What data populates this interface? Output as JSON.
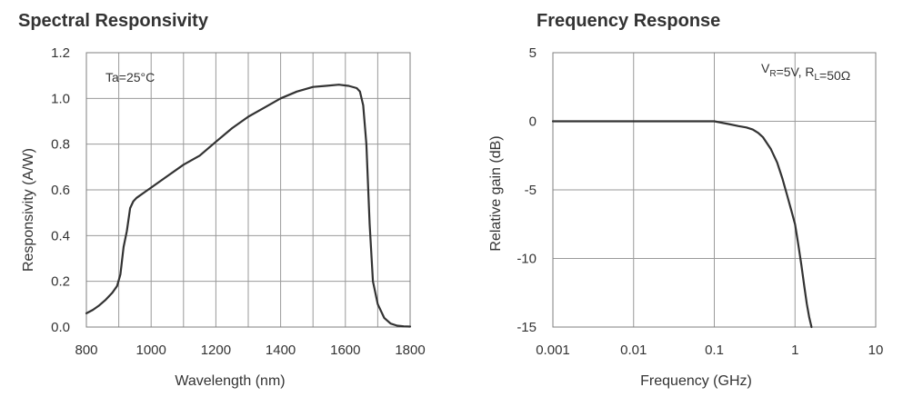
{
  "chart_data": [
    {
      "type": "line",
      "title": "Spectral Responsivity",
      "xlabel": "Wavelength  (nm)",
      "ylabel": "Responsivity  (A/W)",
      "xlim": [
        800,
        1800
      ],
      "ylim": [
        0,
        1.2
      ],
      "x_ticks": [
        800,
        1000,
        1200,
        1400,
        1600,
        1800
      ],
      "x_tick_labels": [
        "800",
        "1000",
        "1200",
        "1400",
        "1600",
        "1800"
      ],
      "y_ticks": [
        0,
        0.2,
        0.4,
        0.6,
        0.8,
        1.0,
        1.2
      ],
      "y_tick_labels": [
        "0.0",
        "0.2",
        "0.4",
        "0.6",
        "0.8",
        "1.0",
        "1.2"
      ],
      "x_minor_grid": [
        900,
        1100,
        1300,
        1500,
        1700
      ],
      "annotation": "Ta=25°C",
      "grid": true,
      "series": [
        {
          "name": "Responsivity",
          "x": [
            800,
            820,
            840,
            860,
            880,
            895,
            905,
            915,
            925,
            935,
            945,
            955,
            965,
            980,
            1000,
            1050,
            1100,
            1150,
            1200,
            1250,
            1300,
            1350,
            1400,
            1450,
            1500,
            1540,
            1580,
            1610,
            1635,
            1645,
            1655,
            1665,
            1675,
            1685,
            1700,
            1720,
            1740,
            1760,
            1780,
            1800
          ],
          "y": [
            0.06,
            0.075,
            0.095,
            0.12,
            0.15,
            0.18,
            0.23,
            0.35,
            0.42,
            0.52,
            0.55,
            0.565,
            0.575,
            0.59,
            0.61,
            0.66,
            0.71,
            0.75,
            0.81,
            0.87,
            0.92,
            0.96,
            1.0,
            1.03,
            1.05,
            1.055,
            1.06,
            1.055,
            1.045,
            1.03,
            0.97,
            0.8,
            0.45,
            0.2,
            0.1,
            0.04,
            0.015,
            0.006,
            0.003,
            0.002
          ]
        }
      ]
    },
    {
      "type": "line",
      "title": "Frequency Response",
      "xlabel": "Frequency  (GHz)",
      "ylabel": "Relative  gain  (dB)",
      "xscale": "log",
      "xlim": [
        0.001,
        10
      ],
      "ylim": [
        -15,
        5
      ],
      "x_ticks": [
        0.001,
        0.01,
        0.1,
        1,
        10
      ],
      "x_tick_labels": [
        "0.001",
        "0.01",
        "0.1",
        "1",
        "10"
      ],
      "y_ticks": [
        5,
        0,
        -5,
        -10,
        -15
      ],
      "y_tick_labels": [
        "5",
        "0",
        "-5",
        "-10",
        "-15"
      ],
      "annotation": {
        "v_main": "V",
        "v_sub": "R",
        "v_rest": "=5V, R",
        "r_sub": "L",
        "r_rest": "=50Ω"
      },
      "grid": true,
      "series": [
        {
          "name": "Relative gain",
          "x": [
            0.001,
            0.01,
            0.1,
            0.15,
            0.2,
            0.25,
            0.3,
            0.35,
            0.4,
            0.5,
            0.6,
            0.7,
            0.8,
            0.9,
            1.0,
            1.1,
            1.2,
            1.3,
            1.4,
            1.5,
            1.6
          ],
          "y": [
            0,
            0,
            0,
            -0.2,
            -0.35,
            -0.45,
            -0.6,
            -0.85,
            -1.15,
            -2.0,
            -3.0,
            -4.2,
            -5.4,
            -6.5,
            -7.5,
            -9.0,
            -10.5,
            -12.0,
            -13.3,
            -14.3,
            -15.0
          ]
        }
      ]
    }
  ]
}
